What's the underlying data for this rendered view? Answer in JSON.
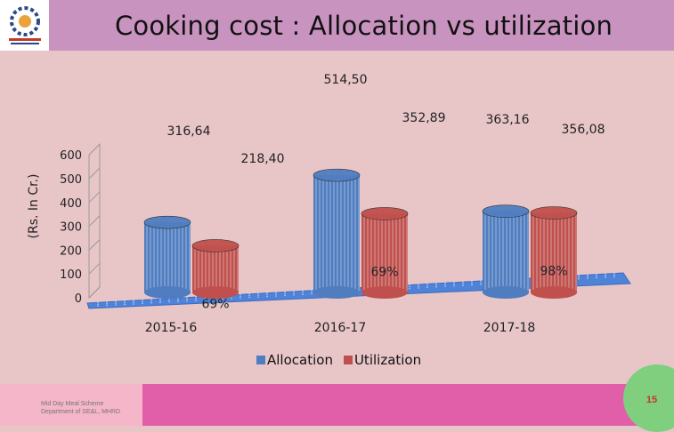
{
  "header": {
    "title": "Cooking cost : Allocation vs utilization"
  },
  "footer": {
    "line1": "Mid Day Meal Scheme",
    "line2": "Department of SE&L, MHRD",
    "page_number": "15"
  },
  "colors": {
    "allocation": "#4f7dc0",
    "utilization": "#c0504d",
    "floor": "#4f83d8"
  },
  "chart_data": {
    "type": "bar",
    "title": "",
    "ylabel": "(Rs. In Cr.)",
    "ylim": [
      0,
      600
    ],
    "yticks": [
      "0",
      "100",
      "200",
      "300",
      "400",
      "500",
      "600"
    ],
    "categories": [
      "2015-16",
      "2016-17",
      "2017-18"
    ],
    "series": [
      {
        "name": "Allocation",
        "values": [
          316.64,
          514.5,
          363.16
        ],
        "labels": [
          "316,64",
          "514,50",
          "363,16"
        ]
      },
      {
        "name": "Utilization",
        "values": [
          218.4,
          352.89,
          356.08
        ],
        "labels": [
          "218,40",
          "352,89",
          "356,08"
        ]
      }
    ],
    "percent_labels": [
      "69%",
      "69%",
      "98%"
    ],
    "legend": "bottom"
  }
}
